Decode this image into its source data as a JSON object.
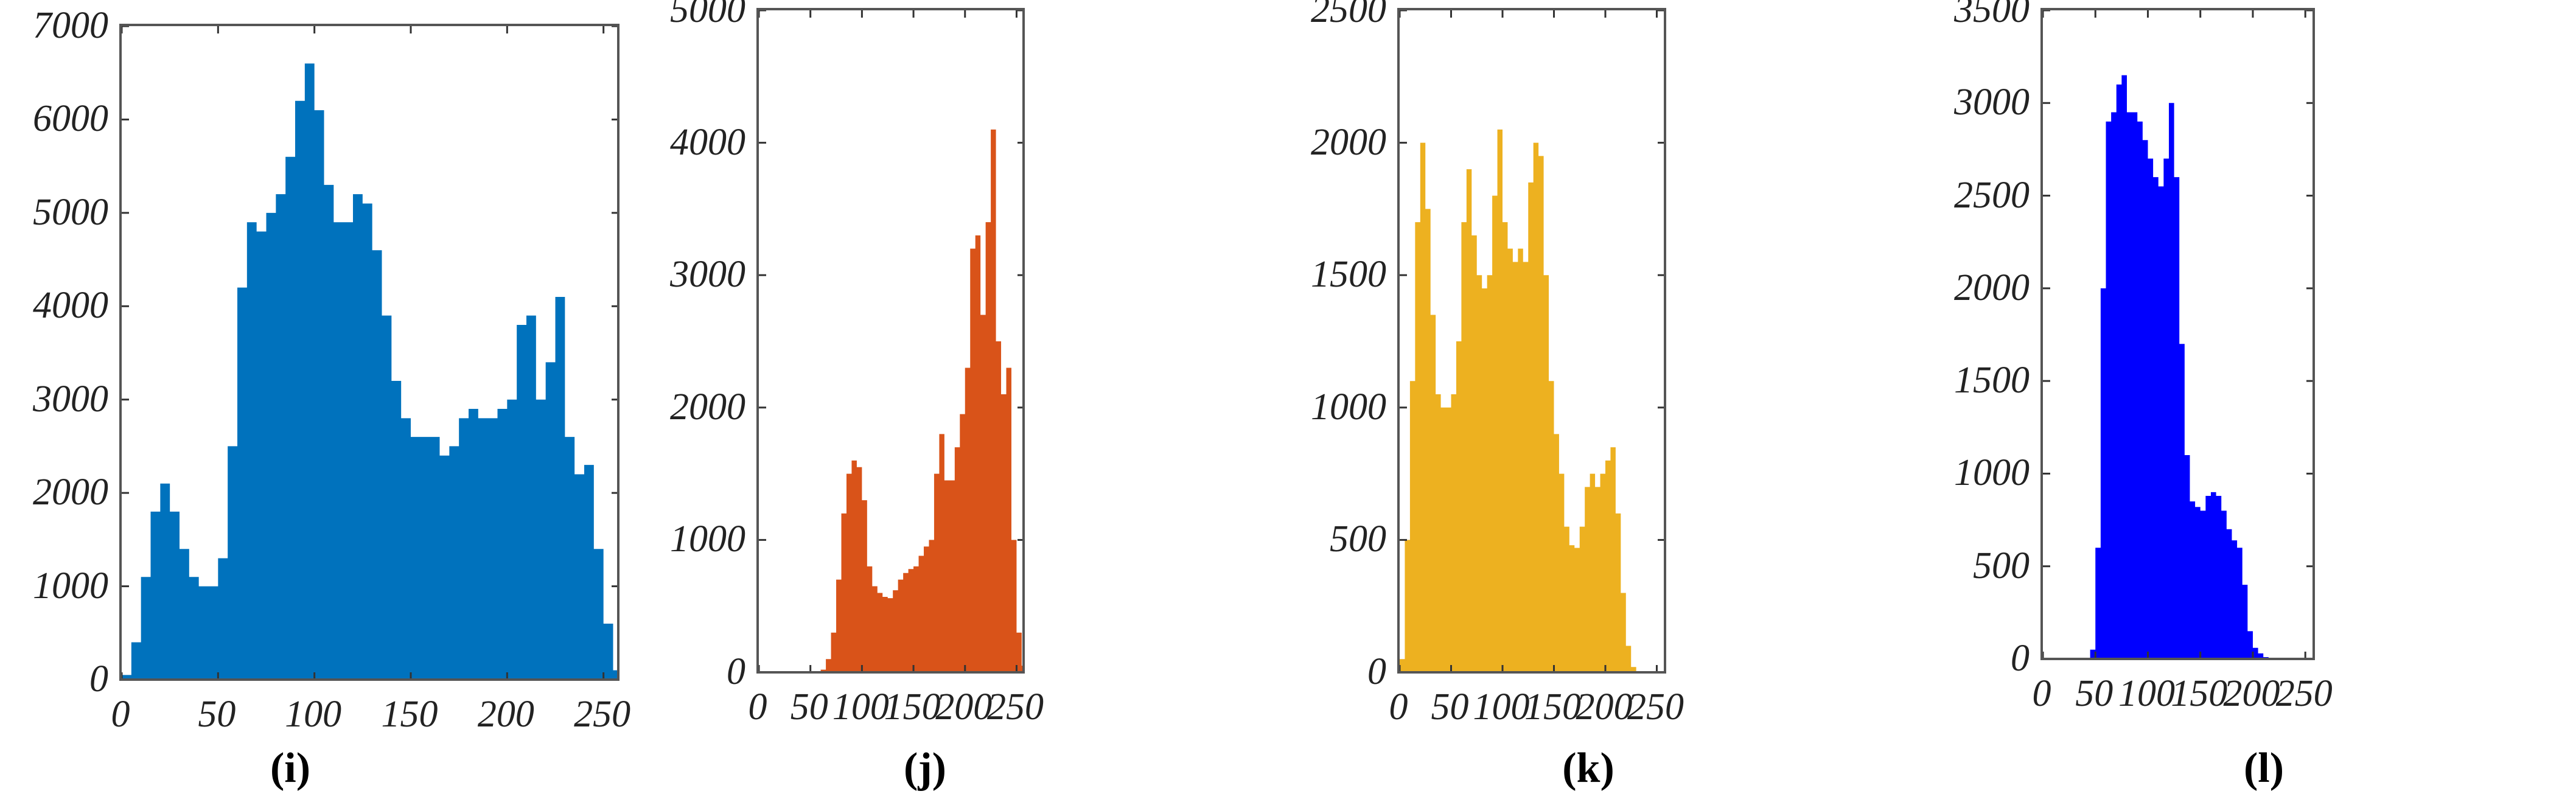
{
  "chart_data": [
    {
      "type": "bar",
      "panel": "i",
      "caption": "(i)",
      "color": "#0072BD",
      "xlabel": "",
      "ylabel": "",
      "xlim": [
        0,
        258
      ],
      "ylim": [
        0,
        7000
      ],
      "xticks": [
        "0",
        "50",
        "100",
        "150",
        "200",
        "250"
      ],
      "yticks": [
        "0",
        "1000",
        "2000",
        "3000",
        "4000",
        "5000",
        "6000",
        "7000"
      ],
      "grid": false,
      "bin_width": 5,
      "x": [
        0,
        5,
        10,
        15,
        20,
        25,
        30,
        35,
        40,
        45,
        50,
        55,
        60,
        65,
        70,
        75,
        80,
        85,
        90,
        95,
        100,
        105,
        110,
        115,
        120,
        125,
        130,
        135,
        140,
        145,
        150,
        155,
        160,
        165,
        170,
        175,
        180,
        185,
        190,
        195,
        200,
        205,
        210,
        215,
        220,
        225,
        230,
        235,
        240,
        245,
        250,
        255
      ],
      "values": [
        50,
        400,
        1100,
        1800,
        2100,
        1800,
        1400,
        1100,
        1000,
        1000,
        1300,
        2500,
        4200,
        4900,
        4800,
        5000,
        5200,
        5600,
        6200,
        6600,
        6100,
        5300,
        4900,
        4900,
        5200,
        5100,
        4600,
        3900,
        3200,
        2800,
        2600,
        2600,
        2600,
        2400,
        2500,
        2800,
        2900,
        2800,
        2800,
        2900,
        3000,
        3800,
        3900,
        3000,
        3400,
        4100,
        2600,
        2200,
        2300,
        1400,
        600,
        100
      ]
    },
    {
      "type": "bar",
      "panel": "j",
      "caption": "(j)",
      "color": "#D95319",
      "xlabel": "",
      "ylabel": "",
      "xlim": [
        0,
        258
      ],
      "ylim": [
        0,
        5000
      ],
      "xticks": [
        "0",
        "50",
        "100",
        "150",
        "200",
        "250"
      ],
      "yticks": [
        "0",
        "1000",
        "2000",
        "3000",
        "4000",
        "5000"
      ],
      "grid": false,
      "bin_width": 5,
      "x": [
        0,
        5,
        10,
        15,
        20,
        25,
        30,
        35,
        40,
        45,
        50,
        55,
        60,
        65,
        70,
        75,
        80,
        85,
        90,
        95,
        100,
        105,
        110,
        115,
        120,
        125,
        130,
        135,
        140,
        145,
        150,
        155,
        160,
        165,
        170,
        175,
        180,
        185,
        190,
        195,
        200,
        205,
        210,
        215,
        220,
        225,
        230,
        235,
        240,
        245,
        250,
        255
      ],
      "values": [
        0,
        0,
        0,
        0,
        0,
        0,
        0,
        0,
        0,
        0,
        0,
        0,
        20,
        100,
        300,
        700,
        1200,
        1500,
        1600,
        1550,
        1300,
        800,
        650,
        600,
        570,
        560,
        620,
        700,
        750,
        780,
        800,
        880,
        950,
        1000,
        1500,
        1800,
        1450,
        1450,
        1700,
        1950,
        2300,
        3200,
        3300,
        2700,
        3400,
        4100,
        2500,
        2100,
        2300,
        1000,
        300,
        50
      ]
    },
    {
      "type": "bar",
      "panel": "k",
      "caption": "(k)",
      "color": "#EDB120",
      "xlabel": "",
      "ylabel": "",
      "xlim": [
        0,
        258
      ],
      "ylim": [
        0,
        2500
      ],
      "xticks": [
        "0",
        "50",
        "100",
        "150",
        "200",
        "250"
      ],
      "yticks": [
        "0",
        "500",
        "1000",
        "1500",
        "2000",
        "2500"
      ],
      "grid": false,
      "bin_width": 5,
      "x": [
        0,
        5,
        10,
        15,
        20,
        25,
        30,
        35,
        40,
        45,
        50,
        55,
        60,
        65,
        70,
        75,
        80,
        85,
        90,
        95,
        100,
        105,
        110,
        115,
        120,
        125,
        130,
        135,
        140,
        145,
        150,
        155,
        160,
        165,
        170,
        175,
        180,
        185,
        190,
        195,
        200,
        205,
        210,
        215,
        220,
        225,
        230,
        235,
        240,
        245,
        250,
        255
      ],
      "values": [
        50,
        500,
        1100,
        1700,
        2000,
        1750,
        1350,
        1050,
        1000,
        1000,
        1050,
        1250,
        1700,
        1900,
        1650,
        1500,
        1450,
        1500,
        1800,
        2050,
        1700,
        1600,
        1550,
        1600,
        1550,
        1850,
        2000,
        1950,
        1500,
        1100,
        900,
        750,
        550,
        480,
        470,
        550,
        700,
        750,
        700,
        750,
        800,
        850,
        600,
        300,
        100,
        20,
        0,
        0,
        0,
        0,
        0,
        0
      ]
    },
    {
      "type": "bar",
      "panel": "l",
      "caption": "(l)",
      "color": "#0000FF",
      "xlabel": "",
      "ylabel": "",
      "xlim": [
        0,
        258
      ],
      "ylim": [
        0,
        3500
      ],
      "xticks": [
        "0",
        "50",
        "100",
        "150",
        "200",
        "250"
      ],
      "yticks": [
        "0",
        "500",
        "1000",
        "1500",
        "2000",
        "2500",
        "3000",
        "3500"
      ],
      "grid": false,
      "bin_width": 5,
      "x": [
        0,
        5,
        10,
        15,
        20,
        25,
        30,
        35,
        40,
        45,
        50,
        55,
        60,
        65,
        70,
        75,
        80,
        85,
        90,
        95,
        100,
        105,
        110,
        115,
        120,
        125,
        130,
        135,
        140,
        145,
        150,
        155,
        160,
        165,
        170,
        175,
        180,
        185,
        190,
        195,
        200,
        205,
        210,
        215,
        220,
        225,
        230,
        235,
        240,
        245,
        250,
        255
      ],
      "values": [
        0,
        0,
        0,
        0,
        0,
        0,
        0,
        0,
        0,
        50,
        600,
        2000,
        2900,
        2950,
        3100,
        3150,
        2950,
        2950,
        2900,
        2800,
        2700,
        2600,
        2550,
        2700,
        3000,
        2600,
        1700,
        1100,
        850,
        820,
        800,
        880,
        900,
        880,
        800,
        700,
        640,
        600,
        400,
        150,
        60,
        30,
        10,
        0,
        0,
        0,
        0,
        0,
        0,
        0,
        0,
        0
      ]
    }
  ]
}
